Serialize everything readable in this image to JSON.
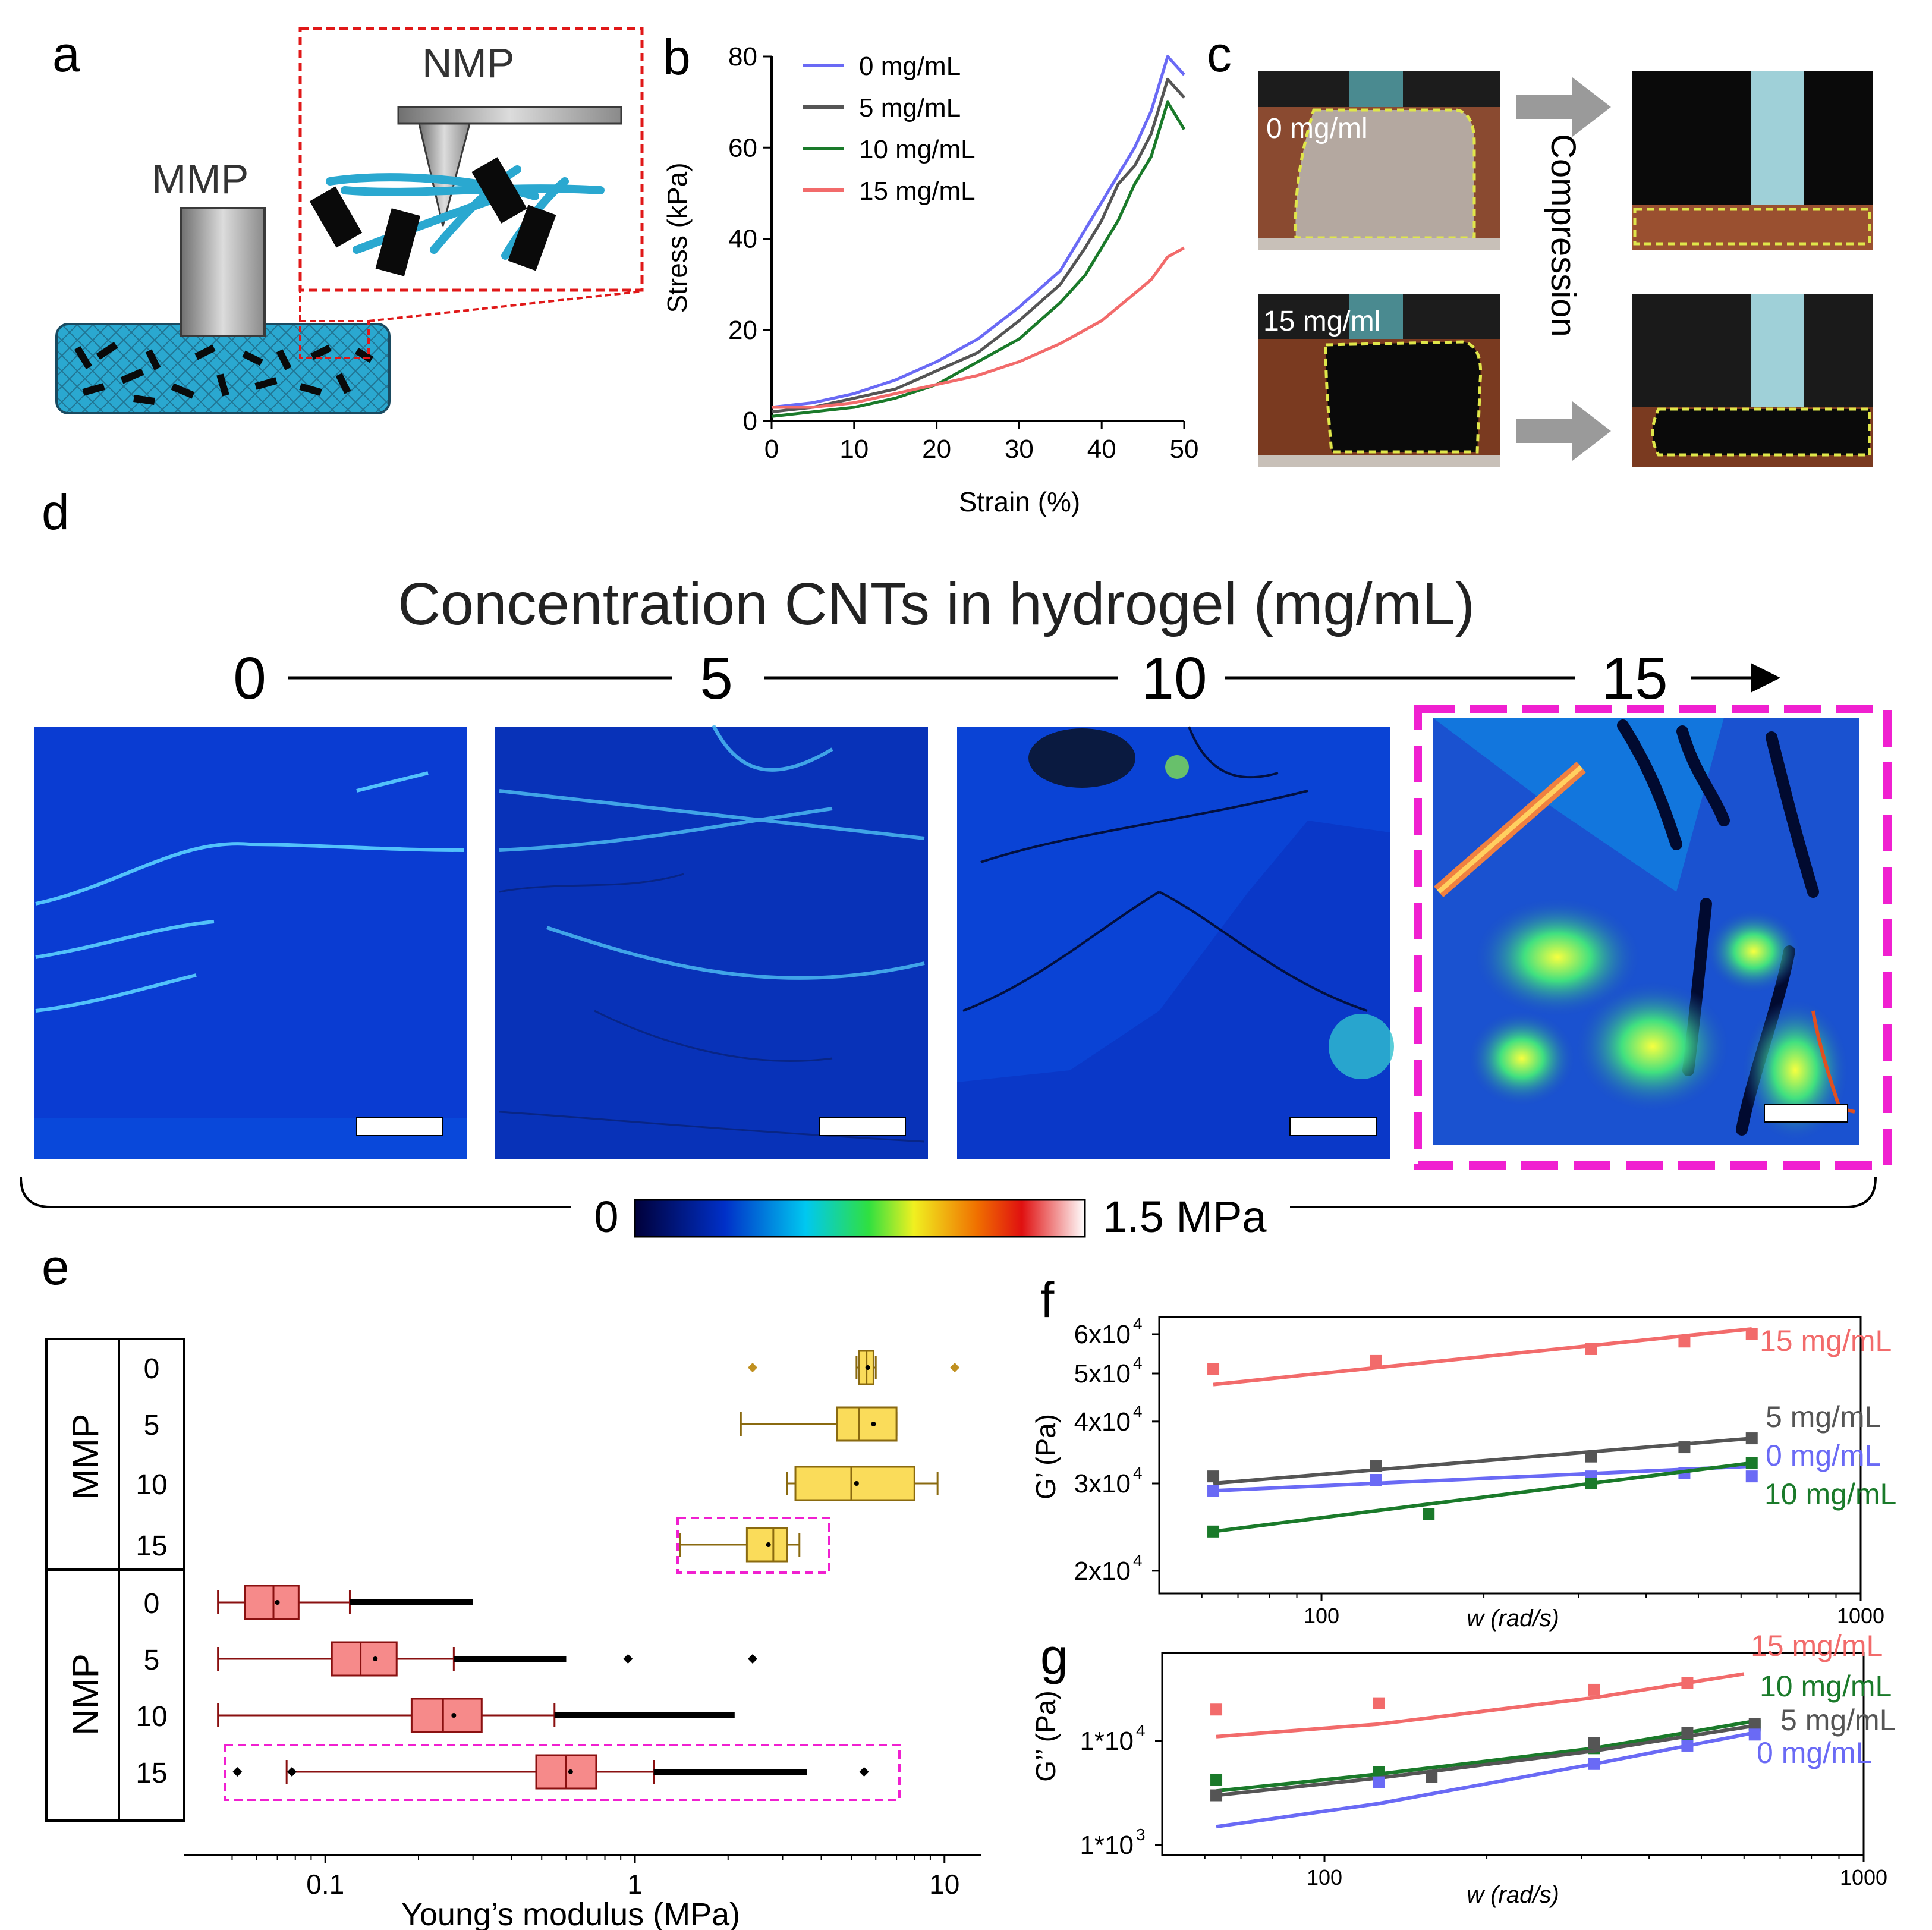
{
  "panel_letters": [
    "a",
    "b",
    "c",
    "d",
    "e",
    "f",
    "g"
  ],
  "panel_a": {
    "mmp": "MMP",
    "nmp": "NMP"
  },
  "panel_b": {
    "chart_data": {
      "type": "line",
      "xlabel": "Strain (%)",
      "ylabel": "Stress (kPa)",
      "xlim": [
        0,
        50
      ],
      "ylim": [
        0,
        80
      ],
      "xticks": [
        0,
        10,
        20,
        30,
        40,
        50
      ],
      "yticks": [
        0,
        20,
        40,
        60,
        80
      ],
      "legend": "top-left",
      "series": [
        {
          "name": "0 mg/mL",
          "color": "#6a6af5",
          "x": [
            0,
            5,
            10,
            15,
            20,
            25,
            30,
            35,
            38,
            40,
            42,
            44,
            46,
            48,
            50
          ],
          "y": [
            3,
            4,
            6,
            9,
            13,
            18,
            25,
            33,
            42,
            48,
            54,
            60,
            68,
            80,
            76
          ]
        },
        {
          "name": "5 mg/mL",
          "color": "#555555",
          "x": [
            0,
            5,
            10,
            15,
            20,
            25,
            30,
            35,
            38,
            40,
            42,
            44,
            46,
            48,
            50
          ],
          "y": [
            2,
            3,
            5,
            7,
            11,
            15,
            22,
            30,
            38,
            44,
            52,
            56,
            63,
            75,
            71
          ]
        },
        {
          "name": "10 mg/mL",
          "color": "#1a7a2a",
          "x": [
            0,
            5,
            10,
            15,
            20,
            25,
            30,
            35,
            38,
            40,
            42,
            44,
            46,
            48,
            50
          ],
          "y": [
            1,
            2,
            3,
            5,
            8,
            13,
            18,
            26,
            32,
            38,
            44,
            52,
            58,
            70,
            64
          ]
        },
        {
          "name": "15 mg/mL",
          "color": "#f26b6b",
          "x": [
            0,
            5,
            10,
            15,
            20,
            25,
            30,
            35,
            38,
            40,
            42,
            44,
            46,
            48,
            50
          ],
          "y": [
            3,
            3,
            4,
            6,
            8,
            10,
            13,
            17,
            20,
            22,
            25,
            28,
            31,
            36,
            38
          ]
        }
      ]
    }
  },
  "panel_c": {
    "label_top": "0 mg/ml",
    "label_bottom": "15 mg/ml",
    "compression": "Compression"
  },
  "panel_d": {
    "title": "Concentration CNTs in hydrogel (mg/mL)",
    "concentrations": [
      "0",
      "5",
      "10",
      "15"
    ],
    "colorbar_min": "0",
    "colorbar_max": "1.5 MPa"
  },
  "panel_e": {
    "chart_data": {
      "type": "box",
      "xlabel": "Young’s modulus (MPa)",
      "xscale": "log",
      "xlim": [
        0.04,
        12
      ],
      "xticks": [
        "0.1",
        "1",
        "10"
      ],
      "groups": [
        {
          "name": "MMP",
          "color": "#fadc5a",
          "boxes": [
            {
              "label": "0",
              "whisker": [
                5.2,
                6.0
              ],
              "q1": 5.3,
              "median": 5.6,
              "q3": 5.9,
              "mean": 5.65,
              "outliers": [
                2.4,
                10.8
              ]
            },
            {
              "label": "5",
              "whisker": [
                2.2,
                7.0
              ],
              "q1": 4.5,
              "median": 5.3,
              "q3": 7.0,
              "mean": 5.9,
              "outliers": []
            },
            {
              "label": "10",
              "whisker": [
                3.1,
                9.5
              ],
              "q1": 3.3,
              "median": 5.0,
              "q3": 8.0,
              "mean": 5.2,
              "outliers": []
            },
            {
              "label": "15",
              "whisker": [
                1.4,
                3.4
              ],
              "q1": 2.3,
              "median": 2.8,
              "q3": 3.1,
              "mean": 2.7,
              "outliers": []
            }
          ]
        },
        {
          "name": "NMP",
          "color": "#f68a8a",
          "boxes": [
            {
              "label": "0",
              "whisker": [
                0.045,
                0.12
              ],
              "q1": 0.055,
              "median": 0.068,
              "q3": 0.082,
              "mean": 0.07,
              "outliers_range": [
                0.12,
                0.3
              ]
            },
            {
              "label": "5",
              "whisker": [
                0.045,
                0.26
              ],
              "q1": 0.105,
              "median": 0.13,
              "q3": 0.17,
              "mean": 0.145,
              "outliers_range": [
                0.26,
                0.6
              ],
              "outliers": [
                0.95,
                2.4
              ]
            },
            {
              "label": "10",
              "whisker": [
                0.045,
                0.55
              ],
              "q1": 0.19,
              "median": 0.24,
              "q3": 0.32,
              "mean": 0.26,
              "outliers_range": [
                0.55,
                2.1
              ]
            },
            {
              "label": "15",
              "whisker": [
                0.075,
                1.15
              ],
              "q1": 0.48,
              "median": 0.6,
              "q3": 0.75,
              "mean": 0.62,
              "outliers_range": [
                1.15,
                3.6
              ],
              "outliers": [
                0.052,
                0.078,
                5.5
              ]
            }
          ]
        }
      ]
    }
  },
  "panel_f": {
    "chart_data": {
      "type": "scatter",
      "xlabel": "w (rad/s)",
      "ylabel": "G’ (Pa)",
      "xscale": "log",
      "yscale": "log",
      "xlim": [
        50,
        1000
      ],
      "ylim": [
        18000,
        65000
      ],
      "xticks": [
        "100",
        "1000"
      ],
      "yticks": [
        "2x10",
        "3x10",
        "4x10",
        "5x10",
        "6x10"
      ],
      "ytick_values": [
        20000,
        30000,
        40000,
        50000,
        60000
      ],
      "ytick_exponent": "4",
      "series": [
        {
          "name": "15 mg/mL",
          "color": "#f26b6b",
          "x": [
            63,
            126,
            316,
            471,
            628
          ],
          "y": [
            51000,
            53000,
            56000,
            58000,
            60000
          ],
          "fit": [
            [
              63,
              47500
            ],
            [
              628,
              61500
            ]
          ]
        },
        {
          "name": "5 mg/mL",
          "color": "#555555",
          "x": [
            63,
            126,
            316,
            471,
            628
          ],
          "y": [
            31000,
            32500,
            34000,
            35500,
            37000
          ],
          "fit": [
            [
              63,
              30000
            ],
            [
              628,
              37000
            ]
          ]
        },
        {
          "name": "0 mg/mL",
          "color": "#6a6af5",
          "x": [
            63,
            126,
            316,
            471,
            628
          ],
          "y": [
            29000,
            30500,
            31000,
            31500,
            31000
          ],
          "fit": [
            [
              63,
              29000
            ],
            [
              628,
              32500
            ]
          ]
        },
        {
          "name": "10 mg/mL",
          "color": "#1a7a2a",
          "x": [
            63,
            158,
            316,
            628
          ],
          "y": [
            24000,
            26000,
            30000,
            33000
          ],
          "fit": [
            [
              63,
              24000
            ],
            [
              628,
              33000
            ]
          ]
        }
      ]
    }
  },
  "panel_g": {
    "chart_data": {
      "type": "scatter",
      "xlabel": "w (rad/s)",
      "ylabel": "G’’ (Pa)",
      "xscale": "log",
      "yscale": "log",
      "xlim": [
        50,
        1000
      ],
      "ylim": [
        800,
        70000
      ],
      "xticks": [
        "100",
        "1000"
      ],
      "yticks": [
        "1*10",
        "1*10"
      ],
      "ytick_values": [
        1000,
        10000
      ],
      "ytick_exponents": [
        "3",
        "4"
      ],
      "series": [
        {
          "name": "15 mg/mL",
          "color": "#f26b6b",
          "x": [
            63,
            126,
            316,
            471
          ],
          "y": [
            20000,
            23000,
            31000,
            36000
          ],
          "fit": [
            [
              63,
              11000
            ],
            [
              126,
              14500
            ],
            [
              316,
              26000
            ],
            [
              600,
              44000
            ]
          ]
        },
        {
          "name": "10 mg/mL",
          "color": "#1a7a2a",
          "x": [
            63,
            126,
            316,
            471,
            628
          ],
          "y": [
            4200,
            5000,
            8500,
            11000,
            14000
          ],
          "fit": [
            [
              63,
              3300
            ],
            [
              126,
              4800
            ],
            [
              316,
              8500
            ],
            [
              628,
              15500
            ]
          ]
        },
        {
          "name": "5 mg/mL",
          "color": "#555555",
          "x": [
            63,
            158,
            316,
            471,
            628
          ],
          "y": [
            3000,
            4500,
            9500,
            12000,
            14500
          ],
          "fit": [
            [
              63,
              3000
            ],
            [
              126,
              4400
            ],
            [
              316,
              8000
            ],
            [
              628,
              14000
            ]
          ]
        },
        {
          "name": "0 mg/mL",
          "color": "#6a6af5",
          "x": [
            126,
            316,
            471,
            628
          ],
          "y": [
            4000,
            6000,
            9000,
            11500
          ],
          "fit": [
            [
              63,
              1500
            ],
            [
              126,
              2500
            ],
            [
              316,
              6000
            ],
            [
              628,
              12000
            ]
          ]
        }
      ]
    }
  }
}
